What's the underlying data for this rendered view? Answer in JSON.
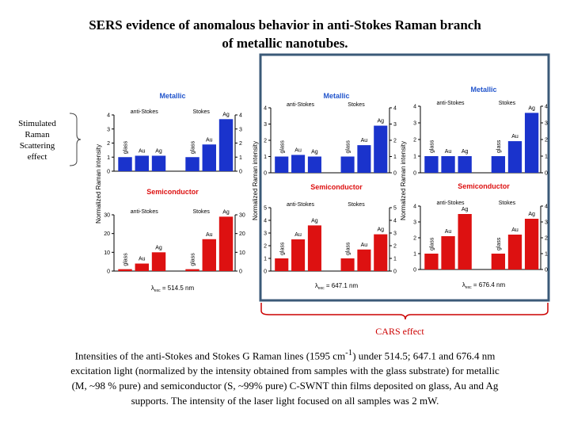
{
  "title": {
    "line1": "SERS evidence of anomalous behavior in anti-Stokes Raman branch",
    "line2": "of metallic nanotubes."
  },
  "side_label": "Stimulated Raman Scattering effect",
  "cars_label": "CARS effect",
  "caption": {
    "before_sup": "Intensities of the anti-Stokes and Stokes G Raman lines (1595 cm",
    "sup": "-1",
    "after_sup": ") under 514.5; 647.1 and 676.4 nm excitation light (normalized by the intensity obtained from samples with the glass substrate) for metallic (M, ~98 % pure) and semiconductor (S, ~99% pure) C-SWNT thin films deposited on glass, Au and Ag supports. The intensity of the laser light focused on all samples was 2 mW."
  },
  "colors": {
    "metallic": "#1a33cc",
    "semiconductor": "#dd1111",
    "title_metallic": "#2255cc",
    "title_semiconductor": "#dd1111",
    "highlight_box": "#3b5a78",
    "cars_bracket": "#cc0000"
  },
  "chart_data": [
    {
      "type": "bar",
      "title": "Metallic",
      "excitation": "514.5 nm",
      "xlabel": "",
      "ylabel": "Normalized Raman intensity",
      "group_labels": [
        "anti-Stokes",
        "Stokes"
      ],
      "categories": [
        "glass",
        "Au",
        "Ag",
        "glass",
        "Au",
        "Ag"
      ],
      "values": [
        1,
        1.1,
        1.1,
        1,
        1.9,
        3.7
      ],
      "ylim": [
        0,
        4
      ],
      "yticks": [
        0,
        1,
        2,
        3,
        4
      ]
    },
    {
      "type": "bar",
      "title": "Semiconductor",
      "excitation": "514.5 nm",
      "xlabel": "",
      "ylabel": "Normalized Raman intensity",
      "group_labels": [
        "anti-Stokes",
        "Stokes"
      ],
      "categories": [
        "glass",
        "Au",
        "Ag",
        "glass",
        "Au",
        "Ag"
      ],
      "values": [
        1,
        4,
        10,
        1,
        17,
        29
      ],
      "ylim": [
        0,
        30
      ],
      "yticks": [
        0,
        10,
        20,
        30
      ]
    },
    {
      "type": "bar",
      "title": "Metallic",
      "excitation": "647.1 nm",
      "xlabel": "",
      "ylabel": "Normalized Raman intensity",
      "group_labels": [
        "anti-Stokes",
        "Stokes"
      ],
      "categories": [
        "glass",
        "Au",
        "Ag",
        "glass",
        "Au",
        "Ag"
      ],
      "values": [
        1,
        1.1,
        1,
        1,
        1.7,
        2.9
      ],
      "ylim": [
        0,
        4
      ],
      "yticks": [
        0,
        1,
        2,
        3,
        4
      ]
    },
    {
      "type": "bar",
      "title": "Semiconductor",
      "excitation": "647.1 nm",
      "xlabel": "",
      "ylabel": "Normalized Raman intensity",
      "group_labels": [
        "anti-Stokes",
        "Stokes"
      ],
      "categories": [
        "glass",
        "Au",
        "Ag",
        "glass",
        "Au",
        "Ag"
      ],
      "values": [
        1,
        2.5,
        3.6,
        1,
        1.7,
        2.9
      ],
      "ylim": [
        0,
        5
      ],
      "yticks": [
        0,
        1,
        2,
        3,
        4,
        5
      ]
    },
    {
      "type": "bar",
      "title": "Metallic",
      "excitation": "676.4 nm",
      "xlabel": "",
      "ylabel": "Normalized Raman intensity",
      "group_labels": [
        "anti-Stokes",
        "Stokes"
      ],
      "categories": [
        "glass",
        "Au",
        "Ag",
        "glass",
        "Au",
        "Ag"
      ],
      "values": [
        1,
        1,
        1,
        1,
        1.9,
        3.6
      ],
      "ylim": [
        0,
        4
      ],
      "yticks": [
        0,
        1,
        2,
        3,
        4
      ]
    },
    {
      "type": "bar",
      "title": "Semiconductor",
      "excitation": "676.4 nm",
      "xlabel": "",
      "ylabel": "Normalized Raman intensity",
      "group_labels": [
        "anti-Stokes",
        "Stokes"
      ],
      "categories": [
        "glass",
        "Au",
        "Ag",
        "glass",
        "Au",
        "Ag"
      ],
      "values": [
        1,
        2.1,
        3.5,
        1,
        2.2,
        3.2
      ],
      "ylim": [
        0,
        4
      ],
      "yticks": [
        0,
        1,
        2,
        3,
        4
      ]
    }
  ]
}
